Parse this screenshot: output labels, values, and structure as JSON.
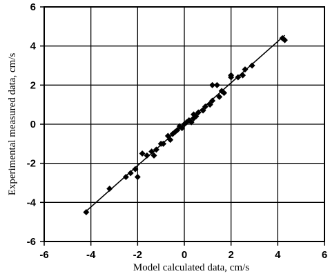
{
  "chart_data": {
    "type": "scatter",
    "title": "",
    "xlabel": "Model calculated data, cm/s",
    "ylabel": "Experimental measured data, cm/s",
    "xlim": [
      -6,
      6
    ],
    "ylim": [
      -6,
      6
    ],
    "xticks": [
      -6,
      -4,
      -2,
      0,
      2,
      4,
      6
    ],
    "xtick_labels": [
      "-6",
      "-4",
      "-2",
      "0",
      "2",
      "4",
      "6"
    ],
    "yticks": [
      -6,
      -4,
      -2,
      0,
      2,
      4,
      6
    ],
    "ytick_labels": [
      "-6",
      "-4",
      "-2",
      "0",
      "2",
      "4",
      "6"
    ],
    "grid": true,
    "marker": "diamond",
    "color": "#000000",
    "series": [
      {
        "points": [
          [
            -4.2,
            -4.5
          ],
          [
            -3.2,
            -3.3
          ],
          [
            -2.5,
            -2.7
          ],
          [
            -2.3,
            -2.5
          ],
          [
            -2.1,
            -2.3
          ],
          [
            -2.0,
            -2.7
          ],
          [
            -1.8,
            -1.5
          ],
          [
            -1.6,
            -1.6
          ],
          [
            -1.4,
            -1.4
          ],
          [
            -1.3,
            -1.6
          ],
          [
            -1.2,
            -1.3
          ],
          [
            -1.0,
            -1.0
          ],
          [
            -0.9,
            -1.0
          ],
          [
            -0.7,
            -0.6
          ],
          [
            -0.6,
            -0.8
          ],
          [
            -0.5,
            -0.5
          ],
          [
            -0.4,
            -0.4
          ],
          [
            -0.3,
            -0.3
          ],
          [
            -0.2,
            -0.1
          ],
          [
            -0.1,
            -0.2
          ],
          [
            0.0,
            0.0
          ],
          [
            0.1,
            0.1
          ],
          [
            0.2,
            0.2
          ],
          [
            0.3,
            0.1
          ],
          [
            0.4,
            0.3
          ],
          [
            0.4,
            0.5
          ],
          [
            0.5,
            0.4
          ],
          [
            0.6,
            0.6
          ],
          [
            0.8,
            0.7
          ],
          [
            0.9,
            0.9
          ],
          [
            1.1,
            1.0
          ],
          [
            1.2,
            1.2
          ],
          [
            1.2,
            2.0
          ],
          [
            1.4,
            2.0
          ],
          [
            1.5,
            1.4
          ],
          [
            1.6,
            1.7
          ],
          [
            1.7,
            1.6
          ],
          [
            2.0,
            2.5
          ],
          [
            2.0,
            2.4
          ],
          [
            2.3,
            2.4
          ],
          [
            2.5,
            2.5
          ],
          [
            2.6,
            2.8
          ],
          [
            2.9,
            3.0
          ],
          [
            4.2,
            4.4
          ],
          [
            4.3,
            4.3
          ]
        ]
      }
    ],
    "fit_line": {
      "x": [
        -4.3,
        4.3
      ],
      "y": [
        -4.55,
        4.55
      ]
    }
  }
}
